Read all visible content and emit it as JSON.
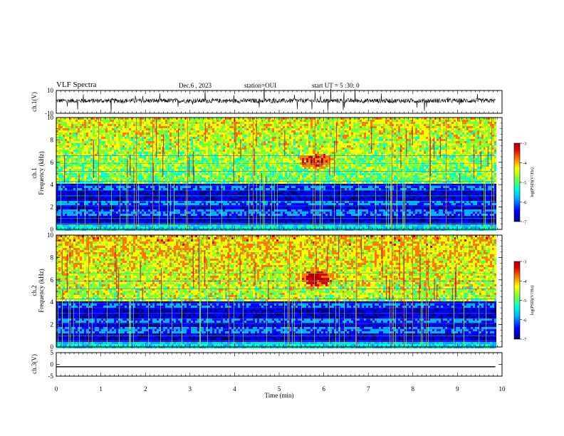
{
  "header": {
    "title": "VLF Spectra",
    "date": "Dec.6 , 2023",
    "station": "station=OUI",
    "start": "start UT = 5 :30: 0"
  },
  "colors": {
    "colormap": [
      "#00007a",
      "#0000ff",
      "#00b4ff",
      "#00ffd2",
      "#7aff3c",
      "#ffff00",
      "#ff7800",
      "#e00000",
      "#aa0000"
    ],
    "trace": "#000000",
    "frame": "#000000"
  },
  "chart_data": [
    {
      "type": "line",
      "ylabel": "ch.1(V)",
      "ylim": [
        -10,
        10
      ],
      "yticks": [
        "10",
        "-10"
      ],
      "description_values": {
        "mean": 1,
        "noise_amplitude": 2
      },
      "xlim": [
        0,
        10
      ]
    },
    {
      "type": "heatmap",
      "ylabel_channel": "ch.1",
      "ylabel": "Frequency (kHz)",
      "ylim": [
        0,
        10
      ],
      "yticks": [
        "0",
        "2",
        "4",
        "6",
        "8",
        "10"
      ],
      "xlim": [
        0,
        10
      ],
      "data_end_min": 9.85,
      "colorbar": {
        "label": "log(PSD)(V²/Hz)",
        "ticks": [
          "-3",
          "-4",
          "-5",
          "-6",
          "-7"
        ],
        "range": [
          -7,
          -3
        ]
      },
      "event": {
        "t_min": 5.8,
        "f_khz": 6.2
      }
    },
    {
      "type": "heatmap",
      "ylabel_channel": "ch.2",
      "ylabel": "Frequency (kHz)",
      "ylim": [
        0,
        10
      ],
      "yticks": [
        "0",
        "2",
        "4",
        "6",
        "8",
        "10"
      ],
      "xlim": [
        0,
        10
      ],
      "data_end_min": 9.85,
      "colorbar": {
        "label": "log(PSD)(V²/Hz)",
        "ticks": [
          "-3",
          "-4",
          "-5",
          "-6",
          "-7"
        ],
        "range": [
          -7,
          -3
        ]
      },
      "event": {
        "t_min": 5.8,
        "f_khz": 6.2
      }
    },
    {
      "type": "line",
      "ylabel": "ch.3(V)",
      "ylim": [
        -5,
        5
      ],
      "yticks": [
        "5",
        "0",
        "-5"
      ],
      "value": -1,
      "xlim": [
        0,
        10
      ]
    }
  ],
  "xaxis": {
    "label": "Time (min)",
    "ticks": [
      "0",
      "1",
      "2",
      "3",
      "4",
      "5",
      "6",
      "7",
      "8",
      "9",
      "10"
    ]
  }
}
